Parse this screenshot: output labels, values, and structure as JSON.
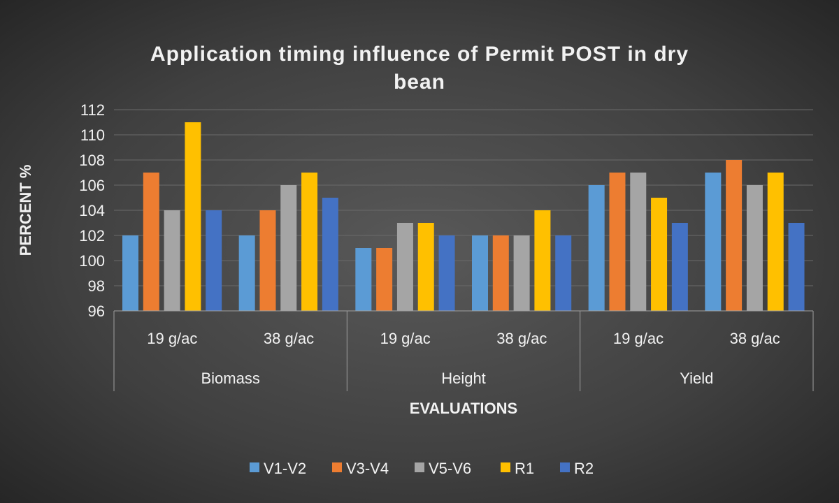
{
  "chart_data": {
    "type": "bar",
    "title": "Application timing influence of Permit POST in dry bean",
    "title_lines": [
      "Application timing influence of Permit POST in dry",
      "bean"
    ],
    "xlabel": "EVALUATIONS",
    "ylabel": "PERCENT %",
    "ylim": [
      96,
      112
    ],
    "yticks": [
      96,
      98,
      100,
      102,
      104,
      106,
      108,
      110,
      112
    ],
    "grid": true,
    "legend_position": "bottom",
    "groups": [
      "Biomass",
      "Height",
      "Yield"
    ],
    "categories": [
      "19 g/ac",
      "38 g/ac",
      "19 g/ac",
      "38 g/ac",
      "19 g/ac",
      "38 g/ac"
    ],
    "series": [
      {
        "name": "V1-V2",
        "color": "#5b9bd5",
        "values": [
          102,
          102,
          101,
          102,
          106,
          107
        ]
      },
      {
        "name": "V3-V4",
        "color": "#ed7d31",
        "values": [
          107,
          104,
          101,
          102,
          107,
          108
        ]
      },
      {
        "name": "V5-V6",
        "color": "#a5a5a5",
        "values": [
          104,
          106,
          103,
          102,
          107,
          106
        ]
      },
      {
        "name": "R1",
        "color": "#ffc000",
        "values": [
          111,
          107,
          103,
          104,
          105,
          107
        ]
      },
      {
        "name": "R2",
        "color": "#4472c4",
        "values": [
          104,
          105,
          102,
          102,
          103,
          103
        ]
      }
    ]
  }
}
